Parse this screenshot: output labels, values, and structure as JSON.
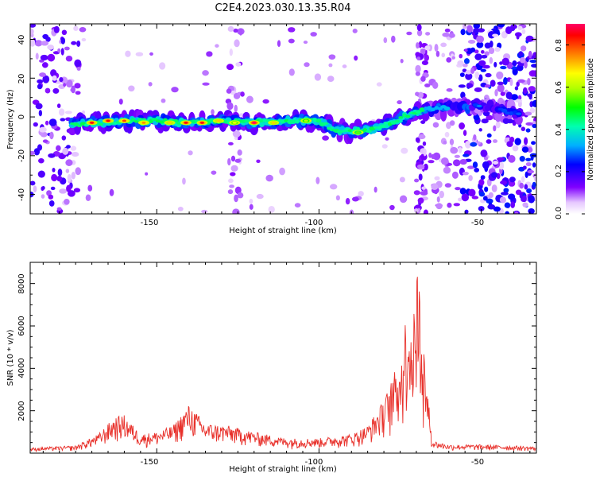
{
  "title": "C2E4.2023.030.13.35.R04",
  "chart_data": [
    {
      "type": "heatmap",
      "xlabel": "Height of straight line (km)",
      "ylabel": "Frequency (Hz)",
      "xlim": [
        -189,
        -33
      ],
      "ylim": [
        -50,
        48
      ],
      "x_ticks": [
        "-150",
        "-100",
        "-50"
      ],
      "y_ticks": [
        "-40",
        "-20",
        "0",
        "20",
        "40"
      ],
      "ridge": {
        "description_points": [
          {
            "x": -175,
            "y": -4
          },
          {
            "x": -160,
            "y": -2
          },
          {
            "x": -150,
            "y": -2
          },
          {
            "x": -140,
            "y": -3
          },
          {
            "x": -130,
            "y": -2
          },
          {
            "x": -120,
            "y": -3
          },
          {
            "x": -110,
            "y": -2
          },
          {
            "x": -100,
            "y": -2
          },
          {
            "x": -95,
            "y": -7
          },
          {
            "x": -85,
            "y": -7
          },
          {
            "x": -78,
            "y": -3
          },
          {
            "x": -70,
            "y": 3
          },
          {
            "x": -60,
            "y": 5
          },
          {
            "x": -50,
            "y": 6
          },
          {
            "x": -40,
            "y": 2
          }
        ],
        "peaks": [
          {
            "x": -170,
            "y": -3,
            "value": 0.85
          },
          {
            "x": -165,
            "y": -2,
            "value": 0.85
          },
          {
            "x": -160,
            "y": -2,
            "value": 0.8
          },
          {
            "x": -154,
            "y": -3,
            "value": 0.75
          },
          {
            "x": -146,
            "y": -3,
            "value": 0.7
          },
          {
            "x": -141,
            "y": -3,
            "value": 0.85
          },
          {
            "x": -136,
            "y": -3,
            "value": 0.85
          },
          {
            "x": -131,
            "y": -2,
            "value": 0.7
          },
          {
            "x": -126,
            "y": -3,
            "value": 0.65
          },
          {
            "x": -120,
            "y": -3,
            "value": 0.9
          },
          {
            "x": -114,
            "y": -3,
            "value": 0.7
          },
          {
            "x": -104,
            "y": -2,
            "value": 0.6
          },
          {
            "x": -88,
            "y": -8,
            "value": 0.55
          }
        ]
      },
      "colorbar": {
        "label": "Normalized spectral amplitude",
        "range": [
          0,
          0.9
        ],
        "ticks": [
          "0.0",
          "0.2",
          "0.4",
          "0.6",
          "0.8"
        ]
      }
    },
    {
      "type": "line",
      "xlabel": "Height of straight line (km)",
      "ylabel": "SNR (10 * v/v)",
      "xlim": [
        -189,
        -33
      ],
      "ylim": [
        0,
        9000
      ],
      "x_ticks": [
        "-150",
        "-100",
        "-50"
      ],
      "y_ticks": [
        "2000",
        "4000",
        "6000",
        "8000"
      ],
      "color": "#e8302a",
      "envelope": [
        {
          "x": -189,
          "y": 250
        },
        {
          "x": -175,
          "y": 350
        },
        {
          "x": -168,
          "y": 900
        },
        {
          "x": -163,
          "y": 1700
        },
        {
          "x": -160,
          "y": 1800
        },
        {
          "x": -155,
          "y": 900
        },
        {
          "x": -150,
          "y": 1000
        },
        {
          "x": -145,
          "y": 1300
        },
        {
          "x": -140,
          "y": 2300
        },
        {
          "x": -135,
          "y": 1400
        },
        {
          "x": -128,
          "y": 1300
        },
        {
          "x": -120,
          "y": 1000
        },
        {
          "x": -110,
          "y": 700
        },
        {
          "x": -100,
          "y": 700
        },
        {
          "x": -90,
          "y": 900
        },
        {
          "x": -85,
          "y": 1300
        },
        {
          "x": -80,
          "y": 2500
        },
        {
          "x": -77,
          "y": 3700
        },
        {
          "x": -74,
          "y": 5000
        },
        {
          "x": -73,
          "y": 7350
        },
        {
          "x": -71,
          "y": 5800
        },
        {
          "x": -70,
          "y": 9000
        },
        {
          "x": -69,
          "y": 8200
        },
        {
          "x": -67,
          "y": 3600
        },
        {
          "x": -65,
          "y": 600
        },
        {
          "x": -60,
          "y": 400
        },
        {
          "x": -50,
          "y": 400
        },
        {
          "x": -40,
          "y": 350
        },
        {
          "x": -33,
          "y": 300
        }
      ]
    }
  ]
}
